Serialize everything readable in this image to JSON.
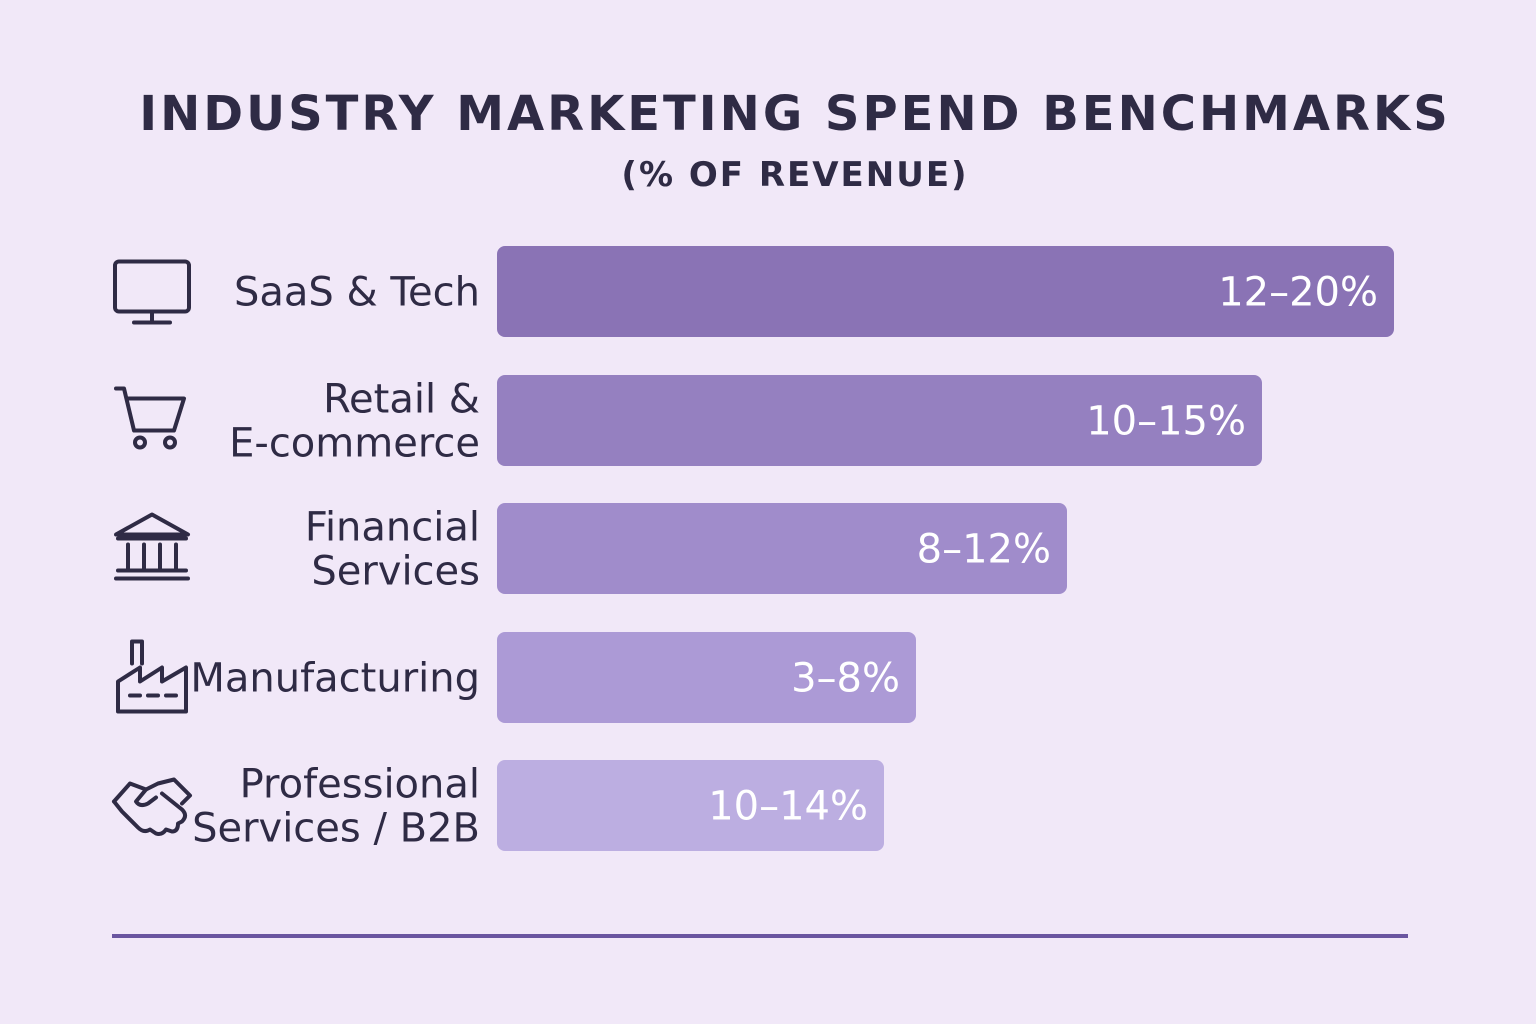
{
  "chart_data": {
    "type": "bar",
    "orientation": "horizontal",
    "title": "INDUSTRY MARKETING SPEND BENCHMARKS",
    "subtitle": "(% OF REVENUE)",
    "unit": "% of revenue",
    "categories": [
      [
        "SaaS & Tech"
      ],
      [
        "Retail &",
        "E-commerce"
      ],
      [
        "Financial",
        "Services"
      ],
      [
        "Manufacturing"
      ],
      [
        "Professional",
        "Services / B2B"
      ]
    ],
    "ranges": [
      [
        12,
        20
      ],
      [
        10,
        15
      ],
      [
        8,
        12
      ],
      [
        3,
        8
      ],
      [
        10,
        14
      ]
    ],
    "value_labels": [
      "12–20%",
      "10–15%",
      "8–12%",
      "3–8%",
      "10–14%"
    ],
    "bar_colors": [
      "#8a73b5",
      "#9580c0",
      "#a08ccb",
      "#ac9ad6",
      "#bcaee1"
    ],
    "icons": [
      "monitor-icon",
      "shopping-cart-icon",
      "bank-icon",
      "factory-icon",
      "handshake-icon"
    ],
    "xlim": [
      0,
      20
    ],
    "grid": false,
    "legend": "none"
  }
}
